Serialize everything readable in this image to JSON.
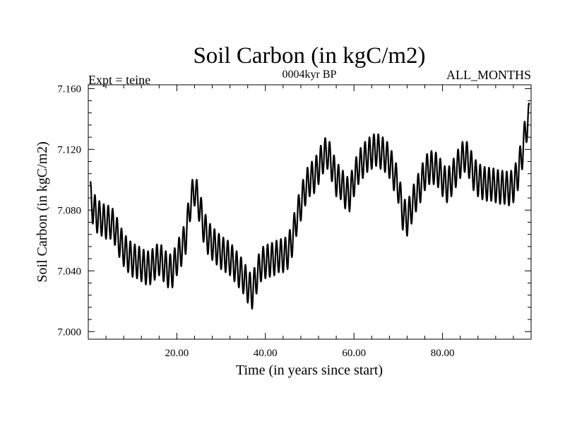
{
  "chart_data": {
    "type": "line",
    "title": "Soil Carbon (in kgC/m2)",
    "subtitle": "0004kyr BP",
    "left_note": "Expt = teine",
    "right_note": "ALL_MONTHS",
    "xlabel": "Time (in years since start)",
    "ylabel": "Soil Carbon (in kgC/m2)",
    "xlim": [
      0,
      100
    ],
    "ylim": [
      6.995,
      7.1625
    ],
    "x_ticks": [
      20,
      40,
      60,
      80
    ],
    "x_tick_labels": [
      "20.00",
      "40.00",
      "60.00",
      "80.00"
    ],
    "y_ticks": [
      7.0,
      7.04,
      7.08,
      7.12,
      7.16
    ],
    "y_tick_labels": [
      "7.000",
      "7.040",
      "7.080",
      "7.120",
      "7.160"
    ],
    "grid": false,
    "seasonal_cycle_amplitude": 0.011,
    "series": [
      {
        "name": "Soil Carbon",
        "color": "#000000",
        "annual_x": [
          0.5,
          1,
          2,
          3,
          4,
          5,
          6,
          7,
          8,
          9,
          10,
          11,
          12,
          13,
          14,
          15,
          16,
          17,
          18,
          19,
          20,
          21,
          22,
          23,
          24,
          25,
          26,
          27,
          28,
          29,
          30,
          31,
          32,
          33,
          34,
          35,
          36,
          37,
          38,
          39,
          40,
          41,
          42,
          43,
          44,
          45,
          46,
          47,
          48,
          49,
          50,
          51,
          52,
          53,
          54,
          55,
          56,
          57,
          58,
          59,
          60,
          61,
          62,
          63,
          64,
          65,
          66,
          67,
          68,
          69,
          70,
          71,
          72,
          73,
          74,
          75,
          76,
          77,
          78,
          79,
          80,
          81,
          82,
          83,
          84,
          85,
          86,
          87,
          88,
          89,
          90,
          91,
          92,
          93,
          94,
          95,
          96,
          97,
          98,
          99,
          99.6
        ],
        "annual_mean": [
          7.088,
          7.082,
          7.076,
          7.074,
          7.072,
          7.072,
          7.068,
          7.06,
          7.054,
          7.05,
          7.047,
          7.046,
          7.044,
          7.042,
          7.042,
          7.045,
          7.048,
          7.044,
          7.04,
          7.04,
          7.048,
          7.054,
          7.062,
          7.084,
          7.094,
          7.084,
          7.07,
          7.062,
          7.058,
          7.055,
          7.052,
          7.05,
          7.048,
          7.044,
          7.04,
          7.036,
          7.03,
          7.026,
          7.036,
          7.044,
          7.046,
          7.047,
          7.048,
          7.05,
          7.05,
          7.052,
          7.06,
          7.074,
          7.084,
          7.094,
          7.1,
          7.102,
          7.108,
          7.115,
          7.118,
          7.11,
          7.1,
          7.098,
          7.092,
          7.09,
          7.1,
          7.108,
          7.112,
          7.116,
          7.118,
          7.12,
          7.118,
          7.116,
          7.112,
          7.104,
          7.096,
          7.078,
          7.074,
          7.082,
          7.09,
          7.096,
          7.104,
          7.108,
          7.108,
          7.106,
          7.1,
          7.096,
          7.1,
          7.106,
          7.112,
          7.116,
          7.112,
          7.104,
          7.1,
          7.098,
          7.097,
          7.097,
          7.096,
          7.095,
          7.095,
          7.094,
          7.096,
          7.104,
          7.118,
          7.136,
          7.14
        ]
      }
    ]
  }
}
